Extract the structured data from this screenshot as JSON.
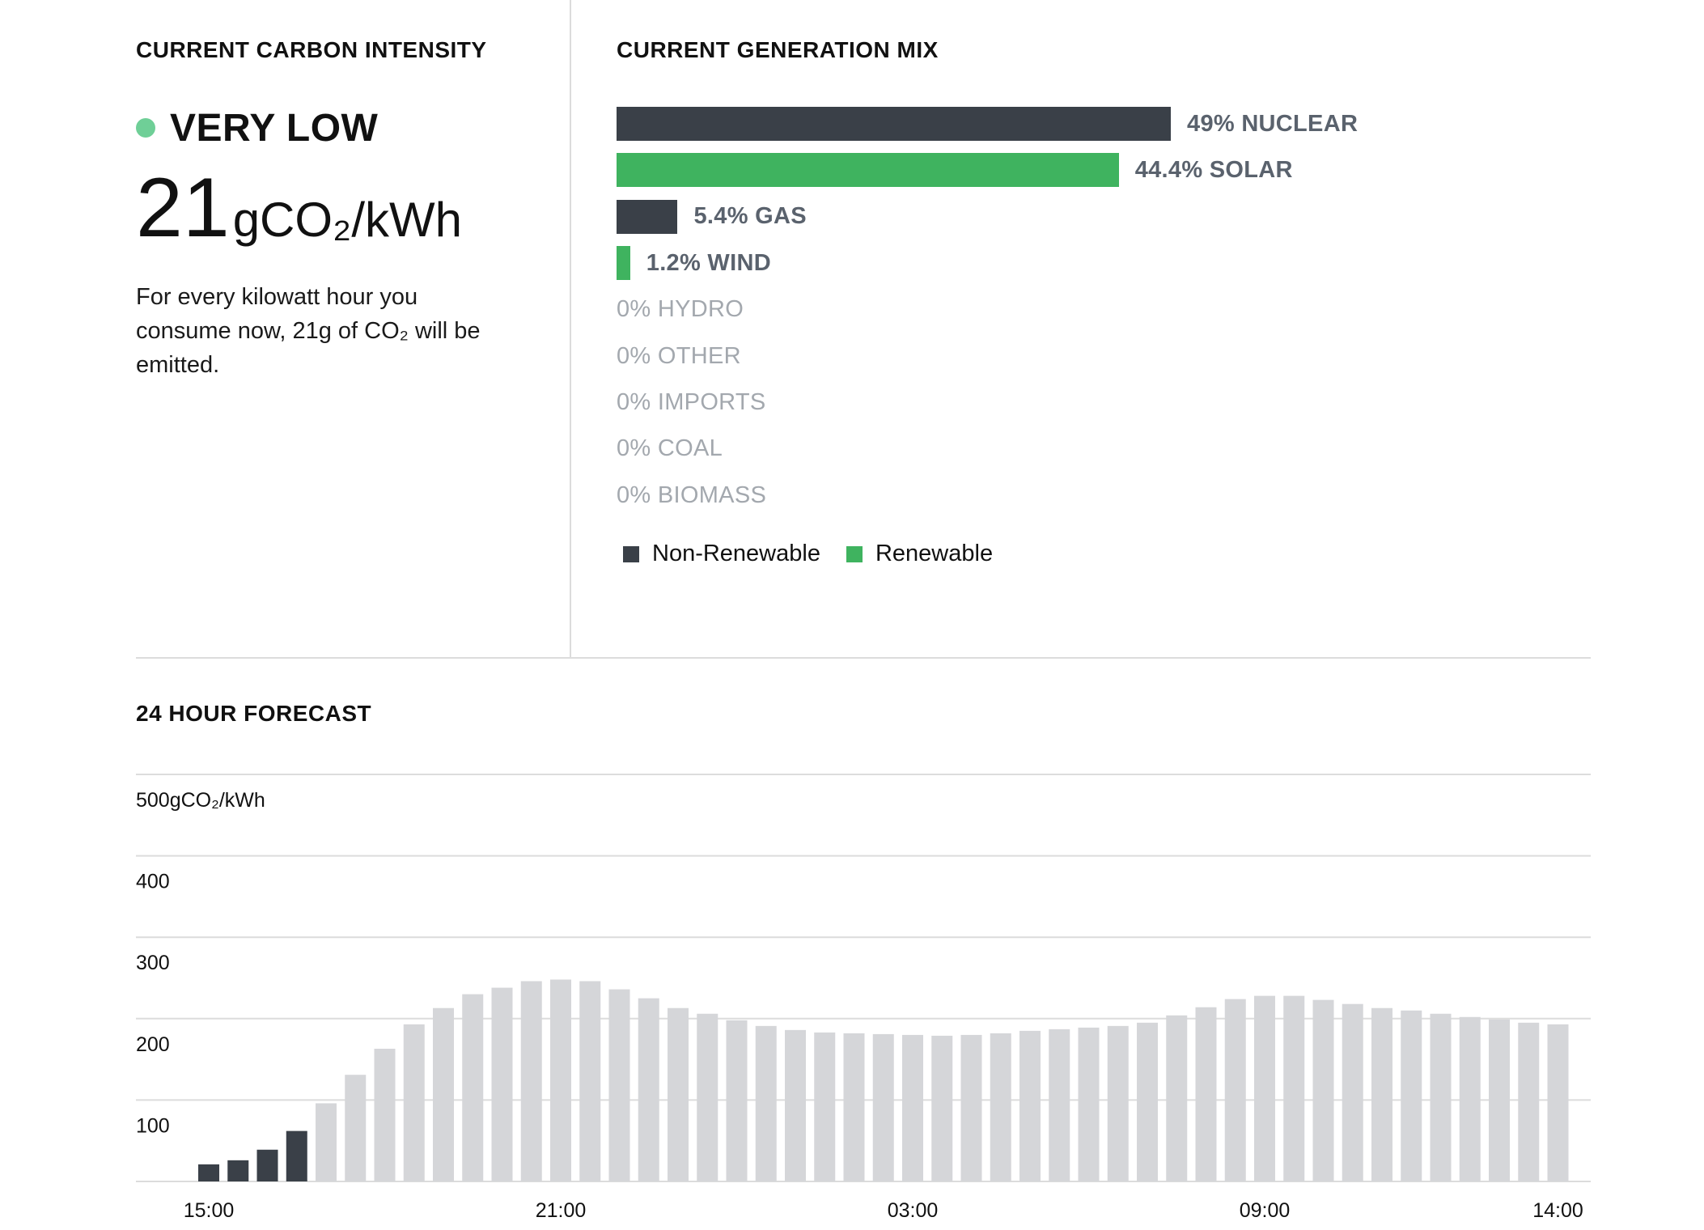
{
  "colors": {
    "non_renewable": "#3a4048",
    "renewable": "#3fb35f",
    "status_dot": "#6fcf97",
    "forecast_past": "#3a4048",
    "forecast_future": "#d5d6d9",
    "grid": "#dcdcdc"
  },
  "current": {
    "title": "CURRENT CARBON INTENSITY",
    "status": "VERY LOW",
    "value": "21",
    "unit": "gCO₂/kWh",
    "description": "For every kilowatt hour you consume now, 21g of CO₂ will be emitted."
  },
  "mix": {
    "title": "CURRENT GENERATION MIX",
    "items": [
      {
        "label": "49% NUCLEAR",
        "percent": 49,
        "kind": "non_renewable"
      },
      {
        "label": "44.4% SOLAR",
        "percent": 44.4,
        "kind": "renewable"
      },
      {
        "label": "5.4% GAS",
        "percent": 5.4,
        "kind": "non_renewable"
      },
      {
        "label": "1.2% WIND",
        "percent": 1.2,
        "kind": "renewable"
      },
      {
        "label": "0% HYDRO",
        "percent": 0,
        "kind": "renewable"
      },
      {
        "label": "0% OTHER",
        "percent": 0,
        "kind": "non_renewable"
      },
      {
        "label": "0% IMPORTS",
        "percent": 0,
        "kind": "non_renewable"
      },
      {
        "label": "0% COAL",
        "percent": 0,
        "kind": "non_renewable"
      },
      {
        "label": "0% BIOMASS",
        "percent": 0,
        "kind": "renewable"
      }
    ],
    "legend": [
      {
        "label": "Non-Renewable",
        "kind": "non_renewable"
      },
      {
        "label": "Renewable",
        "kind": "renewable"
      }
    ]
  },
  "forecast": {
    "title": "24 HOUR FORECAST"
  },
  "chart_data": {
    "type": "bar",
    "ylim": [
      0,
      500
    ],
    "yticks": [
      {
        "value": 500,
        "label": "500gCO₂/kWh"
      },
      {
        "value": 400,
        "label": "400"
      },
      {
        "value": 300,
        "label": "300"
      },
      {
        "value": 200,
        "label": "200"
      },
      {
        "value": 100,
        "label": "100"
      }
    ],
    "xtick_labels": [
      {
        "index": 0,
        "label": "15:00"
      },
      {
        "index": 12,
        "label": "21:00"
      },
      {
        "index": 24,
        "label": "03:00"
      },
      {
        "index": 36,
        "label": "09:00"
      },
      {
        "index": 46,
        "label": "14:00"
      }
    ],
    "current_count": 4,
    "series": [
      {
        "values": [
          21,
          26,
          39,
          62,
          96,
          131,
          163,
          193,
          213,
          230,
          238,
          246,
          248,
          246,
          236,
          225,
          213,
          206,
          198,
          191,
          186,
          183,
          182,
          181,
          180,
          179,
          180,
          182,
          185,
          187,
          189,
          191,
          195,
          204,
          214,
          224,
          228,
          228,
          223,
          218,
          213,
          210,
          206,
          202,
          199,
          195,
          193
        ]
      }
    ]
  }
}
